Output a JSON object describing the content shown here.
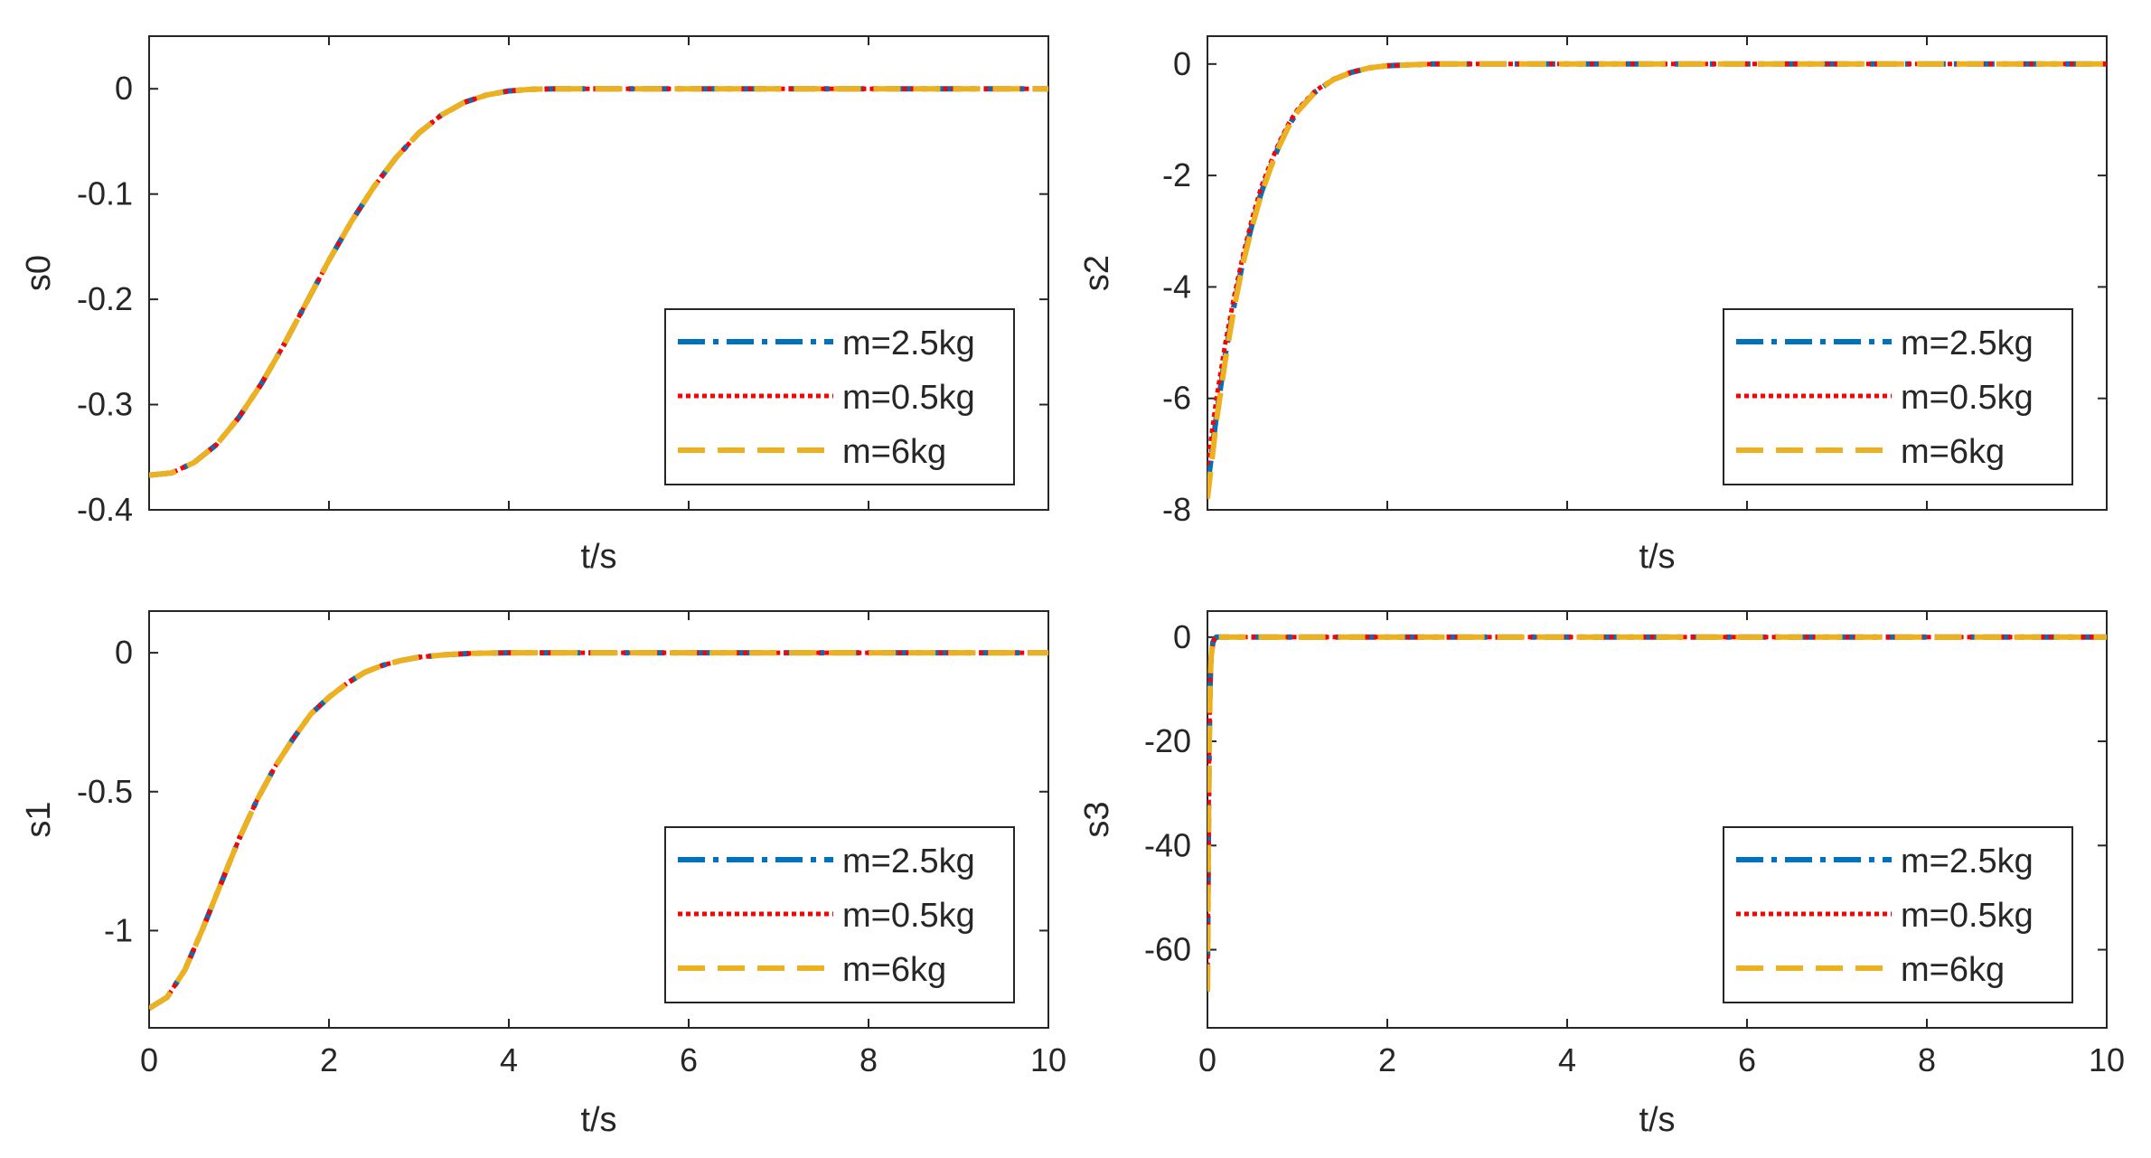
{
  "colors": {
    "axes": "#262626",
    "background": "#ffffff"
  },
  "chart_data": [
    {
      "id": "s0",
      "type": "line",
      "xlabel": "t/s",
      "ylabel": "s0",
      "xlim": [
        0,
        10
      ],
      "ylim": [
        -0.4,
        0.05
      ],
      "xticks": [
        0,
        2,
        4,
        6,
        8,
        10
      ],
      "xtick_labels_visible": false,
      "yticks": [
        0,
        -0.1,
        -0.2,
        -0.3,
        -0.4
      ],
      "ytick_labels": [
        "0",
        "-0.1",
        "-0.2",
        "-0.3",
        "-0.4"
      ],
      "grid": false,
      "legend": "bottom-right",
      "series": [
        {
          "name": "m=2.5kg",
          "color": "#0072BD",
          "style": "dash-dot",
          "x": [
            0,
            0.25,
            0.5,
            0.75,
            1.0,
            1.25,
            1.5,
            1.75,
            2.0,
            2.25,
            2.5,
            2.75,
            3.0,
            3.25,
            3.5,
            3.75,
            4.0,
            4.25,
            4.5,
            5,
            6,
            7,
            8,
            9,
            10
          ],
          "y": [
            -0.367,
            -0.365,
            -0.355,
            -0.338,
            -0.312,
            -0.28,
            -0.243,
            -0.203,
            -0.163,
            -0.126,
            -0.093,
            -0.065,
            -0.042,
            -0.025,
            -0.013,
            -0.006,
            -0.002,
            -0.0005,
            0,
            0,
            0,
            0,
            0,
            0,
            0
          ]
        },
        {
          "name": "m=0.5kg",
          "color": "#FF0000",
          "style": "dotted",
          "x": [
            0,
            0.25,
            0.5,
            0.75,
            1.0,
            1.25,
            1.5,
            1.75,
            2.0,
            2.25,
            2.5,
            2.75,
            3.0,
            3.25,
            3.5,
            3.75,
            4.0,
            4.25,
            4.5,
            5,
            6,
            7,
            8,
            9,
            10
          ],
          "y": [
            -0.367,
            -0.365,
            -0.355,
            -0.338,
            -0.312,
            -0.28,
            -0.243,
            -0.203,
            -0.163,
            -0.126,
            -0.093,
            -0.065,
            -0.042,
            -0.025,
            -0.013,
            -0.006,
            -0.002,
            -0.0005,
            0,
            0,
            0,
            0,
            0,
            0,
            0
          ]
        },
        {
          "name": "m=6kg",
          "color": "#EDB120",
          "style": "dashed",
          "x": [
            0,
            0.25,
            0.5,
            0.75,
            1.0,
            1.25,
            1.5,
            1.75,
            2.0,
            2.25,
            2.5,
            2.75,
            3.0,
            3.25,
            3.5,
            3.75,
            4.0,
            4.25,
            4.5,
            5,
            6,
            7,
            8,
            9,
            10
          ],
          "y": [
            -0.367,
            -0.365,
            -0.355,
            -0.338,
            -0.312,
            -0.28,
            -0.243,
            -0.203,
            -0.163,
            -0.126,
            -0.093,
            -0.065,
            -0.042,
            -0.025,
            -0.013,
            -0.006,
            -0.002,
            -0.0005,
            0,
            0,
            0,
            0,
            0,
            0,
            0
          ]
        }
      ]
    },
    {
      "id": "s2",
      "type": "line",
      "xlabel": "t/s",
      "ylabel": "s2",
      "xlim": [
        0,
        10
      ],
      "ylim": [
        -8,
        0.5
      ],
      "xticks": [
        0,
        2,
        4,
        6,
        8,
        10
      ],
      "xtick_labels_visible": false,
      "yticks": [
        0,
        -2,
        -4,
        -6,
        -8
      ],
      "ytick_labels": [
        "0",
        "-2",
        "-4",
        "-6",
        "-8"
      ],
      "grid": false,
      "legend": "bottom-right",
      "series": [
        {
          "name": "m=2.5kg",
          "color": "#0072BD",
          "style": "dash-dot",
          "x": [
            0,
            0.1,
            0.2,
            0.3,
            0.4,
            0.5,
            0.6,
            0.7,
            0.8,
            0.9,
            1.0,
            1.2,
            1.4,
            1.6,
            1.8,
            2.0,
            2.5,
            3,
            4,
            6,
            8,
            10
          ],
          "y": [
            -7.6,
            -6.3,
            -5.2,
            -4.3,
            -3.5,
            -2.85,
            -2.3,
            -1.85,
            -1.45,
            -1.12,
            -0.85,
            -0.5,
            -0.28,
            -0.15,
            -0.07,
            -0.03,
            0,
            0,
            0,
            0,
            0,
            0
          ]
        },
        {
          "name": "m=0.5kg",
          "color": "#FF0000",
          "style": "dotted",
          "x": [
            0,
            0.1,
            0.2,
            0.3,
            0.4,
            0.5,
            0.6,
            0.7,
            0.8,
            0.9,
            1.0,
            1.2,
            1.4,
            1.6,
            1.8,
            2.0,
            2.5,
            3,
            4,
            6,
            8,
            10
          ],
          "y": [
            -7.2,
            -6.0,
            -5.0,
            -4.15,
            -3.4,
            -2.75,
            -2.2,
            -1.78,
            -1.4,
            -1.08,
            -0.82,
            -0.48,
            -0.27,
            -0.14,
            -0.07,
            -0.03,
            0,
            0,
            0,
            0,
            0,
            0
          ]
        },
        {
          "name": "m=6kg",
          "color": "#EDB120",
          "style": "dashed",
          "x": [
            0,
            0.1,
            0.2,
            0.3,
            0.4,
            0.5,
            0.6,
            0.7,
            0.8,
            0.9,
            1.0,
            1.2,
            1.4,
            1.6,
            1.8,
            2.0,
            2.5,
            3,
            4,
            6,
            8,
            10
          ],
          "y": [
            -7.8,
            -6.4,
            -5.3,
            -4.35,
            -3.55,
            -2.9,
            -2.33,
            -1.87,
            -1.47,
            -1.13,
            -0.86,
            -0.5,
            -0.28,
            -0.15,
            -0.07,
            -0.03,
            0,
            0,
            0,
            0,
            0,
            0
          ]
        }
      ]
    },
    {
      "id": "s1",
      "type": "line",
      "xlabel": "t/s",
      "ylabel": "s1",
      "xlim": [
        0,
        10
      ],
      "ylim": [
        -1.35,
        0.15
      ],
      "xticks": [
        0,
        2,
        4,
        6,
        8,
        10
      ],
      "xtick_labels": [
        "0",
        "2",
        "4",
        "6",
        "8",
        "10"
      ],
      "yticks": [
        0,
        -0.5,
        -1
      ],
      "ytick_labels": [
        "0",
        "-0.5",
        "-1"
      ],
      "grid": false,
      "legend": "bottom-right",
      "series": [
        {
          "name": "m=2.5kg",
          "color": "#0072BD",
          "style": "dash-dot",
          "x": [
            0,
            0.2,
            0.4,
            0.6,
            0.8,
            1.0,
            1.2,
            1.4,
            1.6,
            1.8,
            2.0,
            2.2,
            2.4,
            2.6,
            2.8,
            3.0,
            3.3,
            3.6,
            4,
            5,
            6,
            7,
            8,
            9,
            10
          ],
          "y": [
            -1.28,
            -1.24,
            -1.14,
            -0.99,
            -0.83,
            -0.67,
            -0.53,
            -0.41,
            -0.31,
            -0.22,
            -0.16,
            -0.11,
            -0.07,
            -0.045,
            -0.028,
            -0.016,
            -0.007,
            -0.002,
            0,
            0,
            0,
            0,
            0,
            0,
            0
          ]
        },
        {
          "name": "m=0.5kg",
          "color": "#FF0000",
          "style": "dotted",
          "x": [
            0,
            0.2,
            0.4,
            0.6,
            0.8,
            1.0,
            1.2,
            1.4,
            1.6,
            1.8,
            2.0,
            2.2,
            2.4,
            2.6,
            2.8,
            3.0,
            3.3,
            3.6,
            4,
            5,
            6,
            7,
            8,
            9,
            10
          ],
          "y": [
            -1.28,
            -1.24,
            -1.14,
            -0.99,
            -0.83,
            -0.67,
            -0.53,
            -0.41,
            -0.31,
            -0.22,
            -0.16,
            -0.11,
            -0.07,
            -0.045,
            -0.028,
            -0.016,
            -0.007,
            -0.002,
            0,
            0,
            0,
            0,
            0,
            0,
            0
          ]
        },
        {
          "name": "m=6kg",
          "color": "#EDB120",
          "style": "dashed",
          "x": [
            0,
            0.2,
            0.4,
            0.6,
            0.8,
            1.0,
            1.2,
            1.4,
            1.6,
            1.8,
            2.0,
            2.2,
            2.4,
            2.6,
            2.8,
            3.0,
            3.3,
            3.6,
            4,
            5,
            6,
            7,
            8,
            9,
            10
          ],
          "y": [
            -1.28,
            -1.24,
            -1.14,
            -0.99,
            -0.83,
            -0.67,
            -0.53,
            -0.41,
            -0.31,
            -0.22,
            -0.16,
            -0.11,
            -0.07,
            -0.045,
            -0.028,
            -0.016,
            -0.007,
            -0.002,
            0,
            0,
            0,
            0,
            0,
            0,
            0
          ]
        }
      ]
    },
    {
      "id": "s3",
      "type": "line",
      "xlabel": "t/s",
      "ylabel": "s3",
      "xlim": [
        0,
        10
      ],
      "ylim": [
        -75,
        5
      ],
      "xticks": [
        0,
        2,
        4,
        6,
        8,
        10
      ],
      "xtick_labels": [
        "0",
        "2",
        "4",
        "6",
        "8",
        "10"
      ],
      "yticks": [
        0,
        -20,
        -40,
        -60
      ],
      "ytick_labels": [
        "0",
        "-20",
        "-40",
        "-60"
      ],
      "grid": false,
      "legend": "bottom-right",
      "series": [
        {
          "name": "m=2.5kg",
          "color": "#0072BD",
          "style": "dash-dot",
          "x": [
            0,
            0.01,
            0.02,
            0.03,
            0.04,
            0.06,
            0.08,
            0.1,
            0.15,
            1,
            2,
            4,
            6,
            8,
            10
          ],
          "y": [
            -68,
            -40,
            -20,
            -9,
            -4,
            -1,
            -0.3,
            0,
            0,
            0,
            0,
            0,
            0,
            0,
            0
          ]
        },
        {
          "name": "m=0.5kg",
          "color": "#FF0000",
          "style": "dotted",
          "x": [
            0,
            0.01,
            0.02,
            0.03,
            0.04,
            0.06,
            0.08,
            0.1,
            0.15,
            1,
            2,
            4,
            6,
            8,
            10
          ],
          "y": [
            -68,
            -40,
            -20,
            -9,
            -4,
            -1,
            -0.3,
            0,
            0,
            0,
            0,
            0,
            0,
            0,
            0
          ]
        },
        {
          "name": "m=6kg",
          "color": "#EDB120",
          "style": "dashed",
          "x": [
            0,
            0.01,
            0.02,
            0.03,
            0.04,
            0.06,
            0.08,
            0.1,
            0.15,
            1,
            2,
            4,
            6,
            8,
            10
          ],
          "y": [
            -68,
            -40,
            -20,
            -9,
            -4,
            -1,
            -0.3,
            0,
            0,
            0,
            0,
            0,
            0,
            0,
            0
          ]
        }
      ]
    }
  ]
}
